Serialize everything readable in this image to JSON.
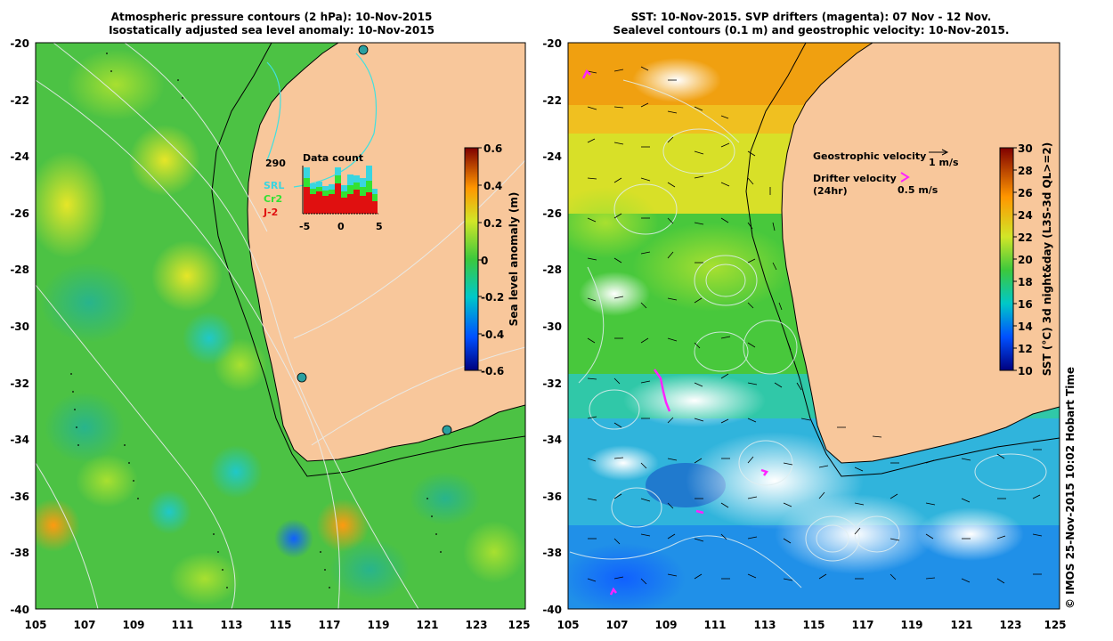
{
  "left_panel": {
    "title_line1": "Atmospheric pressure contours (2 hPa): 10-Nov-2015",
    "title_line2": "Isostatically adjusted sea level anomaly: 10-Nov-2015",
    "x_ticks": [
      "105",
      "107",
      "109",
      "111",
      "113",
      "115",
      "117",
      "119",
      "121",
      "123",
      "125"
    ],
    "y_ticks": [
      "-20",
      "-22",
      "-24",
      "-26",
      "-28",
      "-30",
      "-32",
      "-34",
      "-36",
      "-38",
      "-40"
    ],
    "colorbar": {
      "label": "Sea level anomaly (m)",
      "ticks": [
        "0.6",
        "0.4",
        "0.2",
        "0",
        "-0.2",
        "-0.4",
        "-0.6"
      ]
    },
    "data_count": {
      "title": "Data count",
      "max_value": "290",
      "legend": [
        {
          "label": "SRL",
          "color": "#39d5e0"
        },
        {
          "label": "Cr2",
          "color": "#33e133"
        },
        {
          "label": "J-2",
          "color": "#e01010"
        }
      ],
      "x_ticks": [
        "-5",
        "0",
        "5"
      ]
    }
  },
  "right_panel": {
    "title_line1": "SST: 10-Nov-2015. SVP drifters (magenta): 07 Nov - 12 Nov.",
    "title_line2": "Sealevel contours (0.1 m) and geostrophic velocity: 10-Nov-2015.",
    "x_ticks": [
      "105",
      "107",
      "109",
      "111",
      "113",
      "115",
      "117",
      "119",
      "121",
      "123",
      "125"
    ],
    "y_ticks": [
      "-20",
      "-22",
      "-24",
      "-26",
      "-28",
      "-30",
      "-32",
      "-34",
      "-36",
      "-38",
      "-40"
    ],
    "legend": {
      "geostrophic_label": "Geostrophic velocity",
      "geostrophic_scale": "1 m/s",
      "drifter_label": "Drifter velocity",
      "drifter_sub": "(24hr)",
      "drifter_scale": "0.5 m/s"
    },
    "colorbar": {
      "label": "SST (°C) 3d night&day (L3S-3d QL>=2)",
      "ticks": [
        "30",
        "28",
        "26",
        "24",
        "22",
        "20",
        "18",
        "16",
        "14",
        "12",
        "10"
      ]
    }
  },
  "credit": "© IMOS 25-Nov-2015 10:02 Hobart Time",
  "colors": {
    "land": "#f8c79b",
    "ocean_green": "#4bbf3c",
    "magenta": "#ff22ff"
  }
}
